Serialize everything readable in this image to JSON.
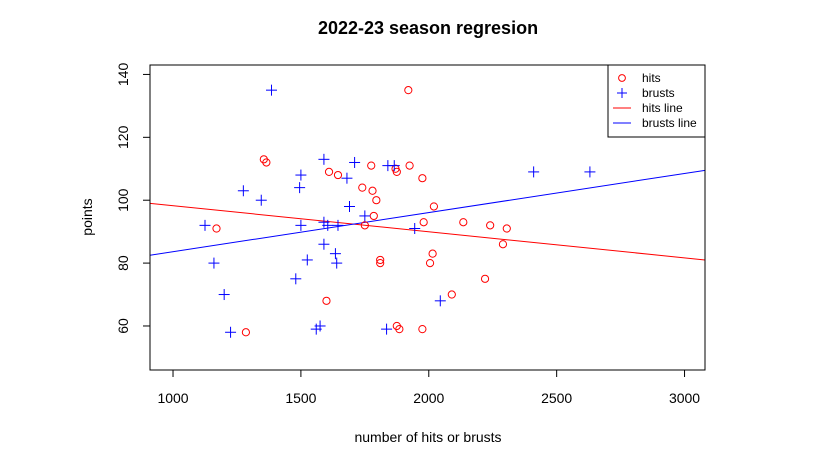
{
  "chart_data": {
    "type": "scatter",
    "title": "2022-23 season regresion",
    "xlabel": "number of hits or brusts",
    "ylabel": "points",
    "xlim": [
      910,
      3080
    ],
    "ylim": [
      46,
      143
    ],
    "xticks": [
      1000,
      1500,
      2000,
      2500,
      3000
    ],
    "yticks": [
      60,
      80,
      100,
      120,
      140
    ],
    "grid": false,
    "legend_position": "top-right",
    "series": [
      {
        "name": "hits",
        "marker": "circle",
        "color": "#ff0000",
        "points": [
          [
            1170,
            91
          ],
          [
            1285,
            58
          ],
          [
            1355,
            113
          ],
          [
            1365,
            112
          ],
          [
            1600,
            68
          ],
          [
            1610,
            109
          ],
          [
            1645,
            108
          ],
          [
            1740,
            104
          ],
          [
            1750,
            92
          ],
          [
            1775,
            111
          ],
          [
            1780,
            103
          ],
          [
            1785,
            95
          ],
          [
            1795,
            100
          ],
          [
            1810,
            81
          ],
          [
            1810,
            80
          ],
          [
            1870,
            110
          ],
          [
            1875,
            109
          ],
          [
            1875,
            60
          ],
          [
            1885,
            59
          ],
          [
            1920,
            135
          ],
          [
            1925,
            111
          ],
          [
            1975,
            107
          ],
          [
            1975,
            59
          ],
          [
            1980,
            93
          ],
          [
            2005,
            80
          ],
          [
            2015,
            83
          ],
          [
            2020,
            98
          ],
          [
            2090,
            70
          ],
          [
            2135,
            93
          ],
          [
            2220,
            75
          ],
          [
            2240,
            92
          ],
          [
            2290,
            86
          ],
          [
            2305,
            91
          ]
        ]
      },
      {
        "name": "brusts",
        "marker": "plus",
        "color": "#0000ff",
        "points": [
          [
            1125,
            92
          ],
          [
            1160,
            80
          ],
          [
            1200,
            70
          ],
          [
            1225,
            58
          ],
          [
            1275,
            103
          ],
          [
            1345,
            100
          ],
          [
            1385,
            135
          ],
          [
            1480,
            75
          ],
          [
            1495,
            104
          ],
          [
            1500,
            108
          ],
          [
            1500,
            92
          ],
          [
            1525,
            81
          ],
          [
            1560,
            59
          ],
          [
            1575,
            60
          ],
          [
            1590,
            113
          ],
          [
            1590,
            93
          ],
          [
            1590,
            86
          ],
          [
            1605,
            92
          ],
          [
            1635,
            83
          ],
          [
            1640,
            80
          ],
          [
            1645,
            92
          ],
          [
            1680,
            107
          ],
          [
            1690,
            98
          ],
          [
            1710,
            112
          ],
          [
            1750,
            95
          ],
          [
            1835,
            59
          ],
          [
            1840,
            111
          ],
          [
            1865,
            111
          ],
          [
            1945,
            91
          ],
          [
            2045,
            68
          ],
          [
            2410,
            109
          ],
          [
            2630,
            109
          ]
        ]
      }
    ],
    "lines": [
      {
        "name": "hits line",
        "color": "#ff0000",
        "x": [
          910,
          3080
        ],
        "y": [
          99,
          81
        ]
      },
      {
        "name": "brusts line",
        "color": "#0000ff",
        "x": [
          910,
          3080
        ],
        "y": [
          82.5,
          109.5
        ]
      }
    ]
  }
}
